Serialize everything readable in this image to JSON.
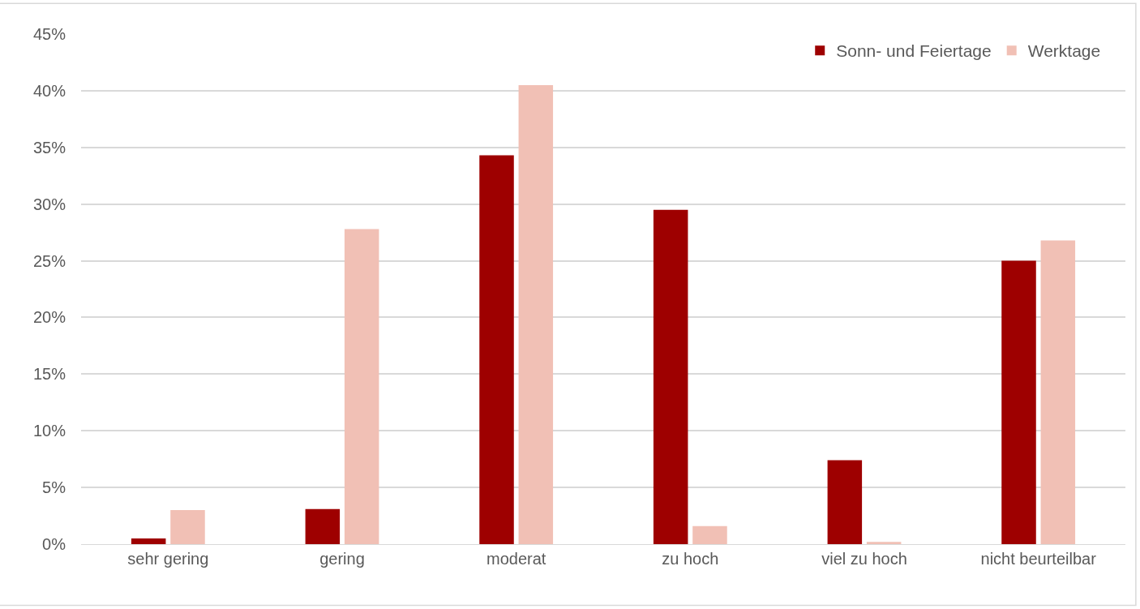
{
  "chart_data": {
    "type": "bar",
    "categories": [
      "sehr gering",
      "gering",
      "moderat",
      "zu hoch",
      "viel zu hoch",
      "nicht beurteilbar"
    ],
    "series": [
      {
        "name": "Sonn- und Feiertage",
        "color": "#9e0000",
        "values": [
          0.5,
          3.1,
          34.3,
          29.5,
          7.4,
          25.0
        ]
      },
      {
        "name": "Werktage",
        "color": "#f1c0b5",
        "values": [
          3.0,
          27.8,
          40.5,
          1.6,
          0.2,
          26.8
        ]
      }
    ],
    "ylim": [
      0,
      45
    ],
    "yticks": [
      {
        "value": 0,
        "label": "0%"
      },
      {
        "value": 5,
        "label": "5%"
      },
      {
        "value": 10,
        "label": "10%"
      },
      {
        "value": 15,
        "label": "15%"
      },
      {
        "value": 20,
        "label": "20%"
      },
      {
        "value": 25,
        "label": "25%"
      },
      {
        "value": 30,
        "label": "30%"
      },
      {
        "value": 35,
        "label": "35%"
      },
      {
        "value": 40,
        "label": "40%"
      },
      {
        "value": 45,
        "label": "45%"
      }
    ],
    "grid": "y",
    "legend": "top right"
  }
}
